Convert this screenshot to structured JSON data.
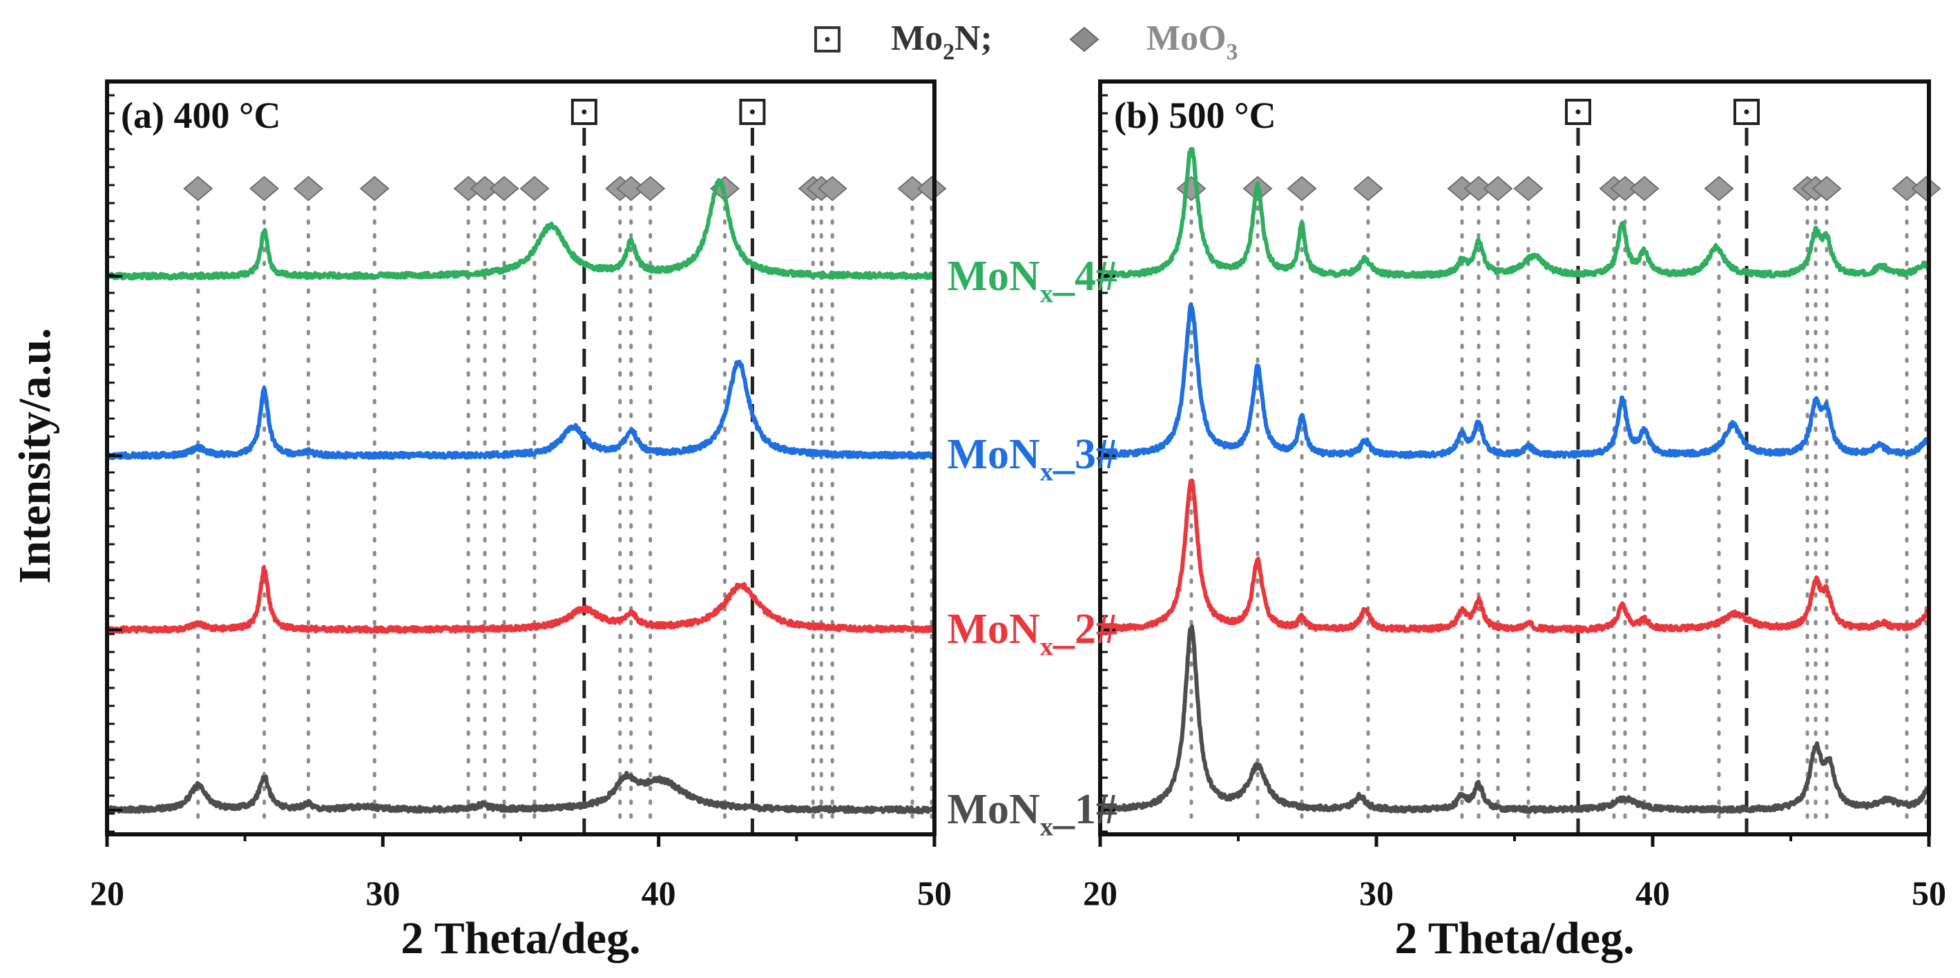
{
  "legend": {
    "items": [
      {
        "base": "Mo",
        "sub": "2",
        "tail": "N;",
        "marker": "boxed-dot",
        "color": "#333333"
      },
      {
        "base": "MoO",
        "sub": "3",
        "tail": "",
        "marker": "diamond",
        "color": "#8c8c8c"
      }
    ]
  },
  "y_axis_label": "Intensity/a.u.",
  "chart_data": [
    {
      "type": "line",
      "panel": "a",
      "title": "(a) 400 °C",
      "xlabel": "2 Theta/deg.",
      "xlim": [
        20,
        50
      ],
      "xticks": [
        20,
        30,
        40,
        50
      ],
      "series": [
        {
          "name": "MoNx_1#",
          "label_base": "MoN",
          "label_sub": "x",
          "label_tail": "_1#",
          "color": "#4d4d4d",
          "offset": 0,
          "peaks": [
            [
              23.3,
              0.22,
              0.35
            ],
            [
              25.7,
              0.3,
              0.22
            ],
            [
              27.3,
              0.05,
              0.2
            ],
            [
              29.3,
              0.03,
              0.6
            ],
            [
              33.6,
              0.04,
              0.3
            ],
            [
              38.8,
              0.22,
              0.45
            ],
            [
              40.1,
              0.25,
              1.0
            ]
          ]
        },
        {
          "name": "MoNx_2#",
          "label_base": "MoN",
          "label_sub": "x",
          "label_tail": "_2#",
          "color": "#e8383d",
          "offset": 1,
          "peaks": [
            [
              23.3,
              0.05,
              0.3
            ],
            [
              25.7,
              0.55,
              0.18
            ],
            [
              37.3,
              0.18,
              0.7
            ],
            [
              39.0,
              0.12,
              0.25
            ],
            [
              43.0,
              0.4,
              0.75
            ]
          ]
        },
        {
          "name": "MoNx_3#",
          "label_base": "MoN",
          "label_sub": "x",
          "label_tail": "_3#",
          "color": "#1f6fe0",
          "offset": 2,
          "peaks": [
            [
              23.3,
              0.07,
              0.3
            ],
            [
              25.7,
              0.6,
              0.18
            ],
            [
              27.3,
              0.03,
              0.2
            ],
            [
              36.9,
              0.26,
              0.5
            ],
            [
              39.0,
              0.22,
              0.25
            ],
            [
              42.9,
              0.85,
              0.45
            ]
          ]
        },
        {
          "name": "MoNx_4#",
          "label_base": "MoN",
          "label_sub": "x",
          "label_tail": "_4#",
          "color": "#2fae5f",
          "offset": 3,
          "peaks": [
            [
              25.7,
              0.42,
              0.15
            ],
            [
              36.1,
              0.45,
              0.65
            ],
            [
              39.0,
              0.28,
              0.22
            ],
            [
              42.2,
              0.85,
              0.45
            ]
          ]
        }
      ],
      "mo2n_lines": [
        37.3,
        43.4
      ],
      "moo3_lines": [
        23.3,
        25.7,
        27.3,
        29.7,
        33.1,
        33.7,
        34.4,
        35.5,
        38.6,
        39.0,
        39.7,
        42.4,
        45.6,
        45.9,
        46.3,
        49.2,
        49.9
      ]
    },
    {
      "type": "line",
      "panel": "b",
      "title": "(b) 500 °C",
      "xlabel": "2 Theta/deg.",
      "xlim": [
        20,
        50
      ],
      "xticks": [
        20,
        30,
        40,
        50
      ],
      "series": [
        {
          "name": "MoNx_1#",
          "color": "#4d4d4d",
          "offset": 0,
          "peaks": [
            [
              23.3,
              1.65,
              0.28
            ],
            [
              25.7,
              0.38,
              0.4
            ],
            [
              29.4,
              0.12,
              0.25
            ],
            [
              33.1,
              0.12,
              0.2
            ],
            [
              33.7,
              0.22,
              0.2
            ],
            [
              39.0,
              0.1,
              0.5
            ],
            [
              45.9,
              0.52,
              0.25
            ],
            [
              46.4,
              0.35,
              0.25
            ],
            [
              48.5,
              0.08,
              0.4
            ],
            [
              50.0,
              0.18,
              0.3
            ]
          ]
        },
        {
          "name": "MoNx_2#",
          "color": "#e8383d",
          "offset": 1,
          "peaks": [
            [
              23.3,
              1.35,
              0.28
            ],
            [
              25.7,
              0.62,
              0.22
            ],
            [
              27.3,
              0.1,
              0.15
            ],
            [
              29.6,
              0.18,
              0.2
            ],
            [
              33.1,
              0.15,
              0.2
            ],
            [
              33.7,
              0.25,
              0.2
            ],
            [
              35.5,
              0.05,
              0.2
            ],
            [
              38.9,
              0.22,
              0.2
            ],
            [
              39.7,
              0.08,
              0.2
            ],
            [
              43.0,
              0.14,
              0.55
            ],
            [
              45.9,
              0.38,
              0.22
            ],
            [
              46.3,
              0.28,
              0.22
            ],
            [
              48.3,
              0.05,
              0.3
            ],
            [
              50.0,
              0.15,
              0.3
            ]
          ]
        },
        {
          "name": "MoNx_3#",
          "color": "#1f6fe0",
          "offset": 2,
          "peaks": [
            [
              23.3,
              1.35,
              0.28
            ],
            [
              25.7,
              0.78,
              0.22
            ],
            [
              27.3,
              0.35,
              0.15
            ],
            [
              29.6,
              0.13,
              0.2
            ],
            [
              33.1,
              0.18,
              0.2
            ],
            [
              33.7,
              0.28,
              0.2
            ],
            [
              35.5,
              0.08,
              0.2
            ],
            [
              38.9,
              0.5,
              0.2
            ],
            [
              39.7,
              0.2,
              0.2
            ],
            [
              42.9,
              0.28,
              0.35
            ],
            [
              45.9,
              0.42,
              0.22
            ],
            [
              46.3,
              0.35,
              0.22
            ],
            [
              48.2,
              0.08,
              0.3
            ],
            [
              50.0,
              0.15,
              0.3
            ]
          ]
        },
        {
          "name": "MoNx_4#",
          "color": "#2fae5f",
          "offset": 3,
          "peaks": [
            [
              23.3,
              1.15,
              0.28
            ],
            [
              25.7,
              0.8,
              0.22
            ],
            [
              27.3,
              0.45,
              0.15
            ],
            [
              29.6,
              0.15,
              0.25
            ],
            [
              33.1,
              0.12,
              0.2
            ],
            [
              33.7,
              0.3,
              0.2
            ],
            [
              35.7,
              0.18,
              0.45
            ],
            [
              38.9,
              0.45,
              0.2
            ],
            [
              39.7,
              0.2,
              0.2
            ],
            [
              42.3,
              0.26,
              0.35
            ],
            [
              45.9,
              0.35,
              0.22
            ],
            [
              46.3,
              0.28,
              0.22
            ],
            [
              48.3,
              0.08,
              0.3
            ],
            [
              49.8,
              0.1,
              0.3
            ]
          ]
        }
      ],
      "mo2n_lines": [
        37.3,
        43.4
      ],
      "moo3_lines": [
        23.3,
        25.7,
        27.3,
        29.7,
        33.1,
        33.7,
        34.4,
        35.5,
        38.6,
        39.0,
        39.7,
        42.4,
        45.6,
        45.9,
        46.3,
        49.2,
        49.9
      ]
    }
  ]
}
